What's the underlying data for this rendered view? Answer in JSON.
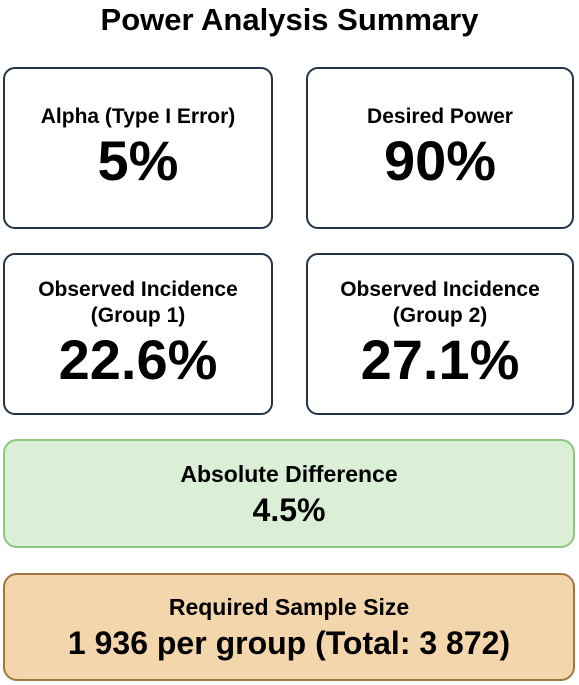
{
  "title": "Power Analysis Summary",
  "cards": {
    "alpha": {
      "label": "Alpha (Type I Error)",
      "value": "5%"
    },
    "power": {
      "label": "Desired Power",
      "value": "90%"
    },
    "incidence_group1": {
      "label_line1": "Observed Incidence",
      "label_line2": "(Group 1)",
      "value": "22.6%"
    },
    "incidence_group2": {
      "label_line1": "Observed Incidence",
      "label_line2": "(Group 2)",
      "value": "27.1%"
    }
  },
  "difference": {
    "label": "Absolute Difference",
    "value": "4.5%"
  },
  "sample_size": {
    "label": "Required Sample Size",
    "value": "1 936 per group (Total: 3 872)"
  },
  "colors": {
    "card_border": "#233448",
    "difference_fill": "#daefd5",
    "difference_border": "#8cc77e",
    "sample_fill": "#f4d6ad",
    "sample_border": "#a1773f"
  }
}
